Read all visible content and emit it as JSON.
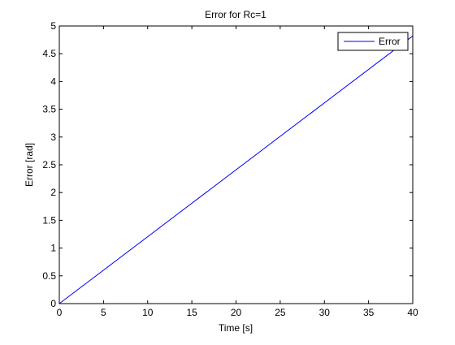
{
  "chart_data": {
    "type": "line",
    "title": "Error for Rc=1",
    "xlabel": "Time [s]",
    "ylabel": "Error [rad]",
    "xlim": [
      0,
      40
    ],
    "ylim": [
      0,
      5
    ],
    "x_ticks": [
      0,
      5,
      10,
      15,
      20,
      25,
      30,
      35,
      40
    ],
    "y_ticks": [
      0,
      0.5,
      1,
      1.5,
      2,
      2.5,
      3,
      3.5,
      4,
      4.5,
      5
    ],
    "x_tick_labels": [
      "0",
      "5",
      "10",
      "15",
      "20",
      "25",
      "30",
      "35",
      "40"
    ],
    "y_tick_labels": [
      "0",
      "0.5",
      "1",
      "1.5",
      "2",
      "2.5",
      "3",
      "3.5",
      "4",
      "4.5",
      "5"
    ],
    "grid": false,
    "legend_position": "top-right",
    "series": [
      {
        "name": "Error",
        "color": "#0000ff",
        "x": [
          0,
          40
        ],
        "y": [
          0,
          4.82
        ]
      }
    ]
  }
}
